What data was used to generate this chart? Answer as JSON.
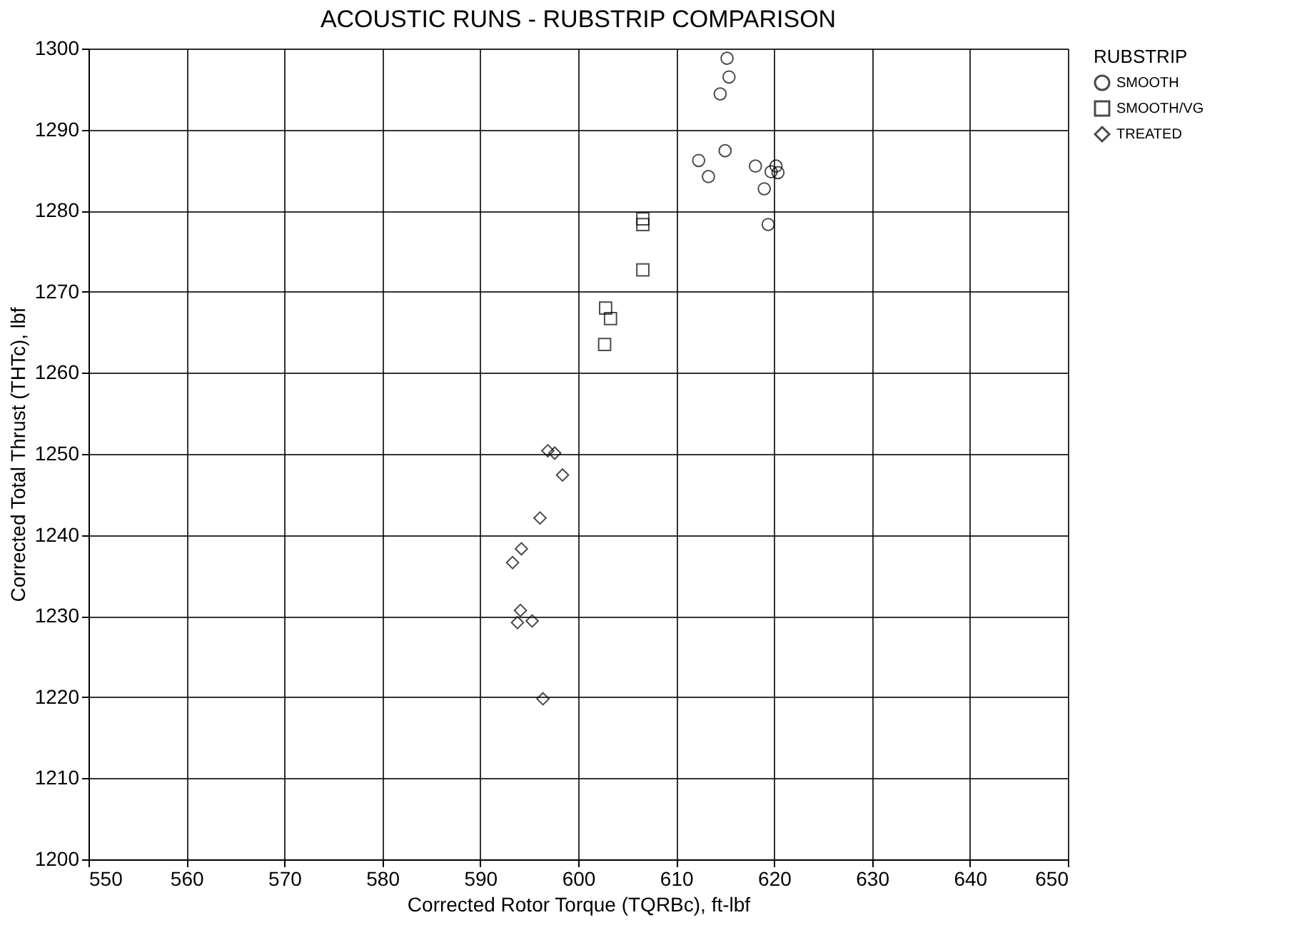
{
  "chart_data": {
    "type": "scatter",
    "title": "ACOUSTIC RUNS - RUBSTRIP COMPARISON",
    "xlabel": "Corrected Rotor Torque (TQRBc),  ft-lbf",
    "ylabel": "Corrected Total Thrust (THTc),  lbf",
    "legend_title": "RUBSTRIP",
    "xlim": [
      550,
      650
    ],
    "xticks": [
      550,
      560,
      570,
      580,
      590,
      600,
      610,
      620,
      630,
      640,
      650
    ],
    "ylim": [
      1200,
      1300
    ],
    "yticks": [
      1200,
      1210,
      1220,
      1230,
      1240,
      1250,
      1260,
      1270,
      1280,
      1290,
      1300
    ],
    "grid": true,
    "legend": "top right",
    "series": [
      {
        "name": "SMOOTH",
        "color": "#000000",
        "marker": "circle",
        "x": [
          615.2,
          615.4,
          614.5,
          612.3,
          615.0,
          613.3,
          618.1,
          620.2,
          619.7,
          620.4,
          619.0,
          619.4
        ],
        "values": [
          1298.8,
          1296.5,
          1294.4,
          1286.2,
          1287.4,
          1284.2,
          1285.5,
          1285.5,
          1284.8,
          1284.7,
          1282.7,
          1278.3
        ]
      },
      {
        "name": "SMOOTH/VG",
        "color": "#000000",
        "marker": "square",
        "x": [
          606.6,
          606.6,
          606.6,
          602.8,
          603.3,
          602.7
        ],
        "values": [
          1279.0,
          1278.3,
          1272.7,
          1268.0,
          1266.7,
          1263.5
        ]
      },
      {
        "name": "TREATED",
        "color": "#000000",
        "marker": "diamond",
        "x": [
          596.9,
          597.6,
          598.4,
          596.1,
          594.2,
          593.3,
          594.1,
          593.8,
          595.3,
          596.4
        ],
        "values": [
          1250.4,
          1250.1,
          1247.4,
          1242.1,
          1238.3,
          1236.6,
          1230.7,
          1229.2,
          1229.4,
          1219.8
        ]
      }
    ]
  }
}
